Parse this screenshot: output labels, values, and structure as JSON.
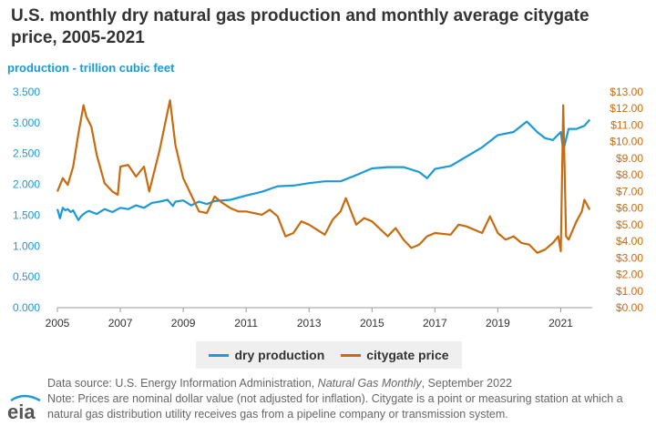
{
  "header": {
    "title": "U.S. monthly dry natural gas production and monthly average citygate price, 2005-2021"
  },
  "logo": {
    "text": "eia",
    "color": "#555555",
    "accent": "#1b9ad6"
  },
  "colors": {
    "production": "#1b9ad6",
    "price": "#c76b0f",
    "axis_text": "#333333"
  },
  "legend": {
    "items": [
      "dry production",
      "citygate price"
    ]
  },
  "notes": {
    "source_prefix": "Data source: U.S. Energy Information Administration, ",
    "source_italic": "Natural Gas Monthly",
    "source_suffix": ", September 2022",
    "note": "Note: Prices are nominal dollar value (not adjusted for inflation). Citygate is a point or measuring station at which a natural gas distribution utility receives gas from a pipeline company or transmission system."
  },
  "chart_data": {
    "type": "line",
    "title": "U.S. monthly dry natural gas production and monthly average citygate price, 2005-2021",
    "ylabel": "production - trillion cubic feet",
    "y2label": "",
    "xlim": [
      2005,
      2022
    ],
    "ylim": [
      0,
      3.5
    ],
    "y2lim": [
      0,
      13
    ],
    "x_ticks": [
      "2005",
      "2007",
      "2009",
      "2011",
      "2013",
      "2015",
      "2017",
      "2019",
      "2021"
    ],
    "y_ticks": [
      "0.000",
      "0.500",
      "1.000",
      "1.500",
      "2.000",
      "2.500",
      "3.000",
      "3.500"
    ],
    "y2_ticks": [
      "$0.00",
      "$1.00",
      "$2.00",
      "$3.00",
      "$4.00",
      "$5.00",
      "$6.00",
      "$7.00",
      "$8.00",
      "$9.00",
      "$10.00",
      "$11.00",
      "$12.00",
      "$13.00"
    ],
    "legend_position": "bottom",
    "grid": false,
    "series": [
      {
        "name": "dry production",
        "axis": "left",
        "x": [
          2005.0,
          2005.08,
          2005.17,
          2005.25,
          2005.33,
          2005.42,
          2005.5,
          2005.58,
          2005.67,
          2005.75,
          2005.83,
          2005.92,
          2006.0,
          2006.25,
          2006.5,
          2006.75,
          2007.0,
          2007.25,
          2007.5,
          2007.75,
          2008.0,
          2008.25,
          2008.5,
          2008.67,
          2008.75,
          2009.0,
          2009.25,
          2009.5,
          2009.75,
          2010.0,
          2010.5,
          2011.0,
          2011.5,
          2012.0,
          2012.5,
          2013.0,
          2013.5,
          2014.0,
          2014.5,
          2015.0,
          2015.5,
          2016.0,
          2016.5,
          2016.75,
          2017.0,
          2017.5,
          2018.0,
          2018.5,
          2019.0,
          2019.5,
          2019.92,
          2020.0,
          2020.25,
          2020.5,
          2020.75,
          2021.0,
          2021.08,
          2021.25,
          2021.5,
          2021.75,
          2021.92
        ],
        "values": [
          1.6,
          1.45,
          1.62,
          1.58,
          1.6,
          1.55,
          1.58,
          1.5,
          1.42,
          1.48,
          1.52,
          1.55,
          1.57,
          1.52,
          1.6,
          1.55,
          1.62,
          1.6,
          1.66,
          1.62,
          1.7,
          1.72,
          1.75,
          1.65,
          1.72,
          1.74,
          1.66,
          1.72,
          1.68,
          1.73,
          1.75,
          1.82,
          1.88,
          1.97,
          1.98,
          2.02,
          2.05,
          2.05,
          2.15,
          2.26,
          2.28,
          2.28,
          2.2,
          2.1,
          2.25,
          2.3,
          2.45,
          2.6,
          2.8,
          2.85,
          3.02,
          2.98,
          2.85,
          2.75,
          2.72,
          2.85,
          2.55,
          2.9,
          2.9,
          2.95,
          3.05
        ]
      },
      {
        "name": "citygate price",
        "axis": "right",
        "x": [
          2005.0,
          2005.17,
          2005.33,
          2005.5,
          2005.67,
          2005.83,
          2005.92,
          2006.08,
          2006.25,
          2006.5,
          2006.75,
          2006.92,
          2007.0,
          2007.25,
          2007.5,
          2007.75,
          2007.92,
          2008.25,
          2008.5,
          2008.58,
          2008.75,
          2009.0,
          2009.25,
          2009.5,
          2009.75,
          2010.0,
          2010.25,
          2010.5,
          2010.75,
          2011.0,
          2011.5,
          2011.75,
          2012.0,
          2012.25,
          2012.5,
          2012.75,
          2013.0,
          2013.5,
          2013.75,
          2014.0,
          2014.17,
          2014.5,
          2014.75,
          2015.0,
          2015.5,
          2015.75,
          2016.0,
          2016.25,
          2016.5,
          2016.75,
          2017.0,
          2017.5,
          2017.75,
          2018.0,
          2018.5,
          2018.75,
          2019.0,
          2019.25,
          2019.5,
          2019.75,
          2020.0,
          2020.25,
          2020.5,
          2020.75,
          2020.92,
          2021.0,
          2021.08,
          2021.17,
          2021.25,
          2021.5,
          2021.67,
          2021.75,
          2021.92
        ],
        "values": [
          7.0,
          7.8,
          7.4,
          8.5,
          10.5,
          12.2,
          11.5,
          10.9,
          9.2,
          7.5,
          7.0,
          6.8,
          8.5,
          8.6,
          7.9,
          8.5,
          7.0,
          9.5,
          11.8,
          12.5,
          9.8,
          7.8,
          6.8,
          5.8,
          5.7,
          6.7,
          6.3,
          6.0,
          5.8,
          5.8,
          5.6,
          5.9,
          5.5,
          4.3,
          4.5,
          5.2,
          5.0,
          4.4,
          5.3,
          5.8,
          6.6,
          5.0,
          5.4,
          5.2,
          4.3,
          4.8,
          4.1,
          3.6,
          3.8,
          4.3,
          4.5,
          4.4,
          5.0,
          4.9,
          4.5,
          5.5,
          4.5,
          4.1,
          4.3,
          3.9,
          3.8,
          3.3,
          3.5,
          3.9,
          4.3,
          3.4,
          12.2,
          4.3,
          4.1,
          5.2,
          5.8,
          6.5,
          5.9
        ]
      }
    ]
  }
}
